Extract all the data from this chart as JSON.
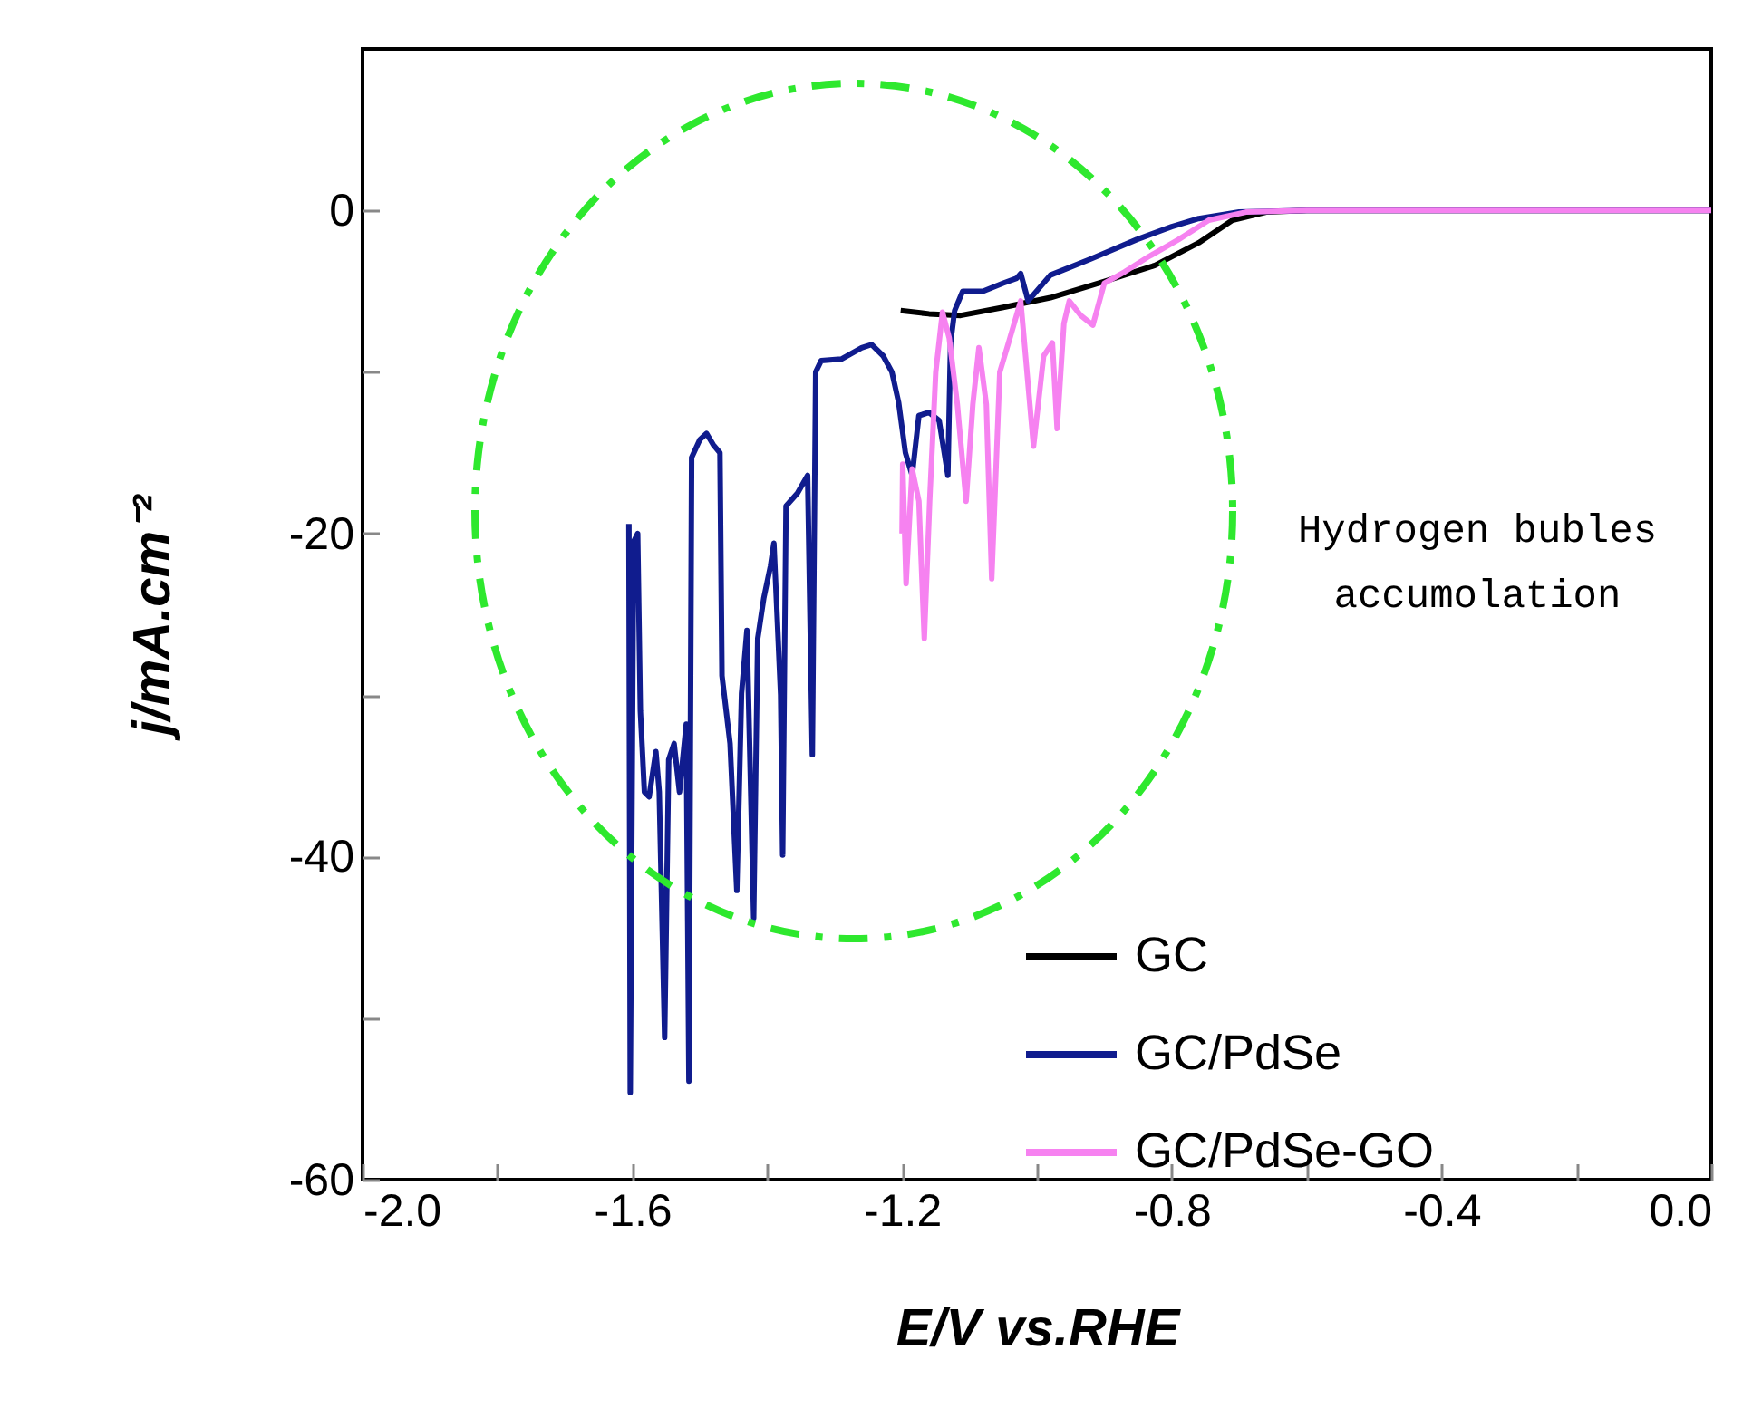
{
  "chart_data": {
    "type": "line",
    "xlabel": "E/V vs.RHE",
    "ylabel": "j/mA.cm⁻²",
    "xlim": [
      -2.0,
      0.0
    ],
    "xticks": [
      {
        "value": -2.0,
        "label": "-2.0"
      },
      {
        "value": -1.8,
        "label": null
      },
      {
        "value": -1.6,
        "label": "-1.6"
      },
      {
        "value": -1.4,
        "label": null
      },
      {
        "value": -1.2,
        "label": "-1.2"
      },
      {
        "value": -1.0,
        "label": null
      },
      {
        "value": -0.8,
        "label": "-0.8"
      },
      {
        "value": -0.6,
        "label": null
      },
      {
        "value": -0.4,
        "label": "-0.4"
      },
      {
        "value": -0.2,
        "label": null
      },
      {
        "value": 0.0,
        "label": "0.0"
      }
    ],
    "ylim": [
      -60,
      10
    ],
    "yticks": [
      -60,
      {
        "value": -50,
        "label": null
      },
      -40,
      {
        "value": -30,
        "label": null
      },
      -20,
      {
        "value": -10,
        "label": null
      },
      0
    ],
    "grid": false,
    "legend": "bottom right",
    "annotations": [
      "Hydrogen bubles",
      "accumolation"
    ],
    "series": [
      {
        "name": "GC",
        "color": "#000000",
        "x": [
          -1.202,
          -1.16,
          -1.113,
          -1.05,
          -0.98,
          -0.9,
          -0.825,
          -0.76,
          -0.71,
          -0.66,
          -0.6,
          0
        ],
        "values": [
          -6.2,
          -6.4,
          -6.5,
          -6.0,
          -5.4,
          -4.4,
          -3.4,
          -2.0,
          -0.6,
          -0.1,
          0,
          0
        ]
      },
      {
        "name": "GC/PdSe",
        "color": "#101c8e",
        "x": [
          -1.605,
          -1.603,
          -1.598,
          -1.592,
          -1.588,
          -1.582,
          -1.575,
          -1.565,
          -1.56,
          -1.552,
          -1.546,
          -1.538,
          -1.53,
          -1.52,
          -1.516,
          -1.512,
          -1.5,
          -1.49,
          -1.48,
          -1.47,
          -1.467,
          -1.455,
          -1.445,
          -1.438,
          -1.43,
          -1.42,
          -1.414,
          -1.405,
          -1.395,
          -1.39,
          -1.38,
          -1.377,
          -1.372,
          -1.355,
          -1.34,
          -1.333,
          -1.328,
          -1.32,
          -1.29,
          -1.26,
          -1.245,
          -1.228,
          -1.215,
          -1.205,
          -1.195,
          -1.185,
          -1.175,
          -1.16,
          -1.145,
          -1.132,
          -1.128,
          -1.122,
          -1.11,
          -1.08,
          -1.05,
          -1.03,
          -1.024,
          -1.013,
          -0.98,
          -0.92,
          -0.852,
          -0.8,
          -0.76,
          -0.7,
          -0.6,
          0
        ],
        "values": [
          -19.4,
          -54.6,
          -20.5,
          -20.0,
          -31.0,
          -36.0,
          -36.3,
          -33.5,
          -36.0,
          -51.2,
          -34.0,
          -33.0,
          -36.0,
          -31.8,
          -53.9,
          -15.3,
          -14.2,
          -13.8,
          -14.5,
          -15.0,
          -28.8,
          -33.0,
          -42.1,
          -29.9,
          -26.0,
          -43.8,
          -26.5,
          -24.0,
          -22.0,
          -20.6,
          -30.0,
          -39.9,
          -18.3,
          -17.5,
          -16.4,
          -33.7,
          -10.0,
          -9.3,
          -9.2,
          -8.5,
          -8.3,
          -9.0,
          -10.0,
          -11.9,
          -15.0,
          -16.4,
          -12.7,
          -12.5,
          -13.0,
          -16.4,
          -8.2,
          -6.2,
          -5.0,
          -5.0,
          -4.5,
          -4.2,
          -3.9,
          -5.6,
          -4.0,
          -3.0,
          -1.8,
          -1.0,
          -0.5,
          -0.1,
          0,
          0
        ]
      },
      {
        "name": "GC/PdSe-GO",
        "color": "#f682f0",
        "x": [
          -1.2,
          -1.199,
          -1.194,
          -1.185,
          -1.175,
          -1.167,
          -1.159,
          -1.15,
          -1.14,
          -1.13,
          -1.118,
          -1.105,
          -1.095,
          -1.086,
          -1.075,
          -1.067,
          -1.055,
          -1.04,
          -1.024,
          -1.005,
          -0.99,
          -0.977,
          -0.97,
          -0.96,
          -0.952,
          -0.935,
          -0.917,
          -0.9,
          -0.87,
          -0.836,
          -0.79,
          -0.745,
          -0.69,
          -0.6,
          0
        ],
        "values": [
          -20.0,
          -15.7,
          -23.1,
          -16.0,
          -18.0,
          -26.5,
          -18.0,
          -10.0,
          -6.3,
          -7.9,
          -12.0,
          -18.0,
          -12.0,
          -8.5,
          -12.0,
          -22.8,
          -10.0,
          -7.9,
          -5.6,
          -14.6,
          -9.0,
          -8.2,
          -13.5,
          -7.0,
          -5.6,
          -6.5,
          -7.1,
          -4.5,
          -3.8,
          -2.9,
          -1.8,
          -0.6,
          -0.1,
          0,
          0
        ]
      }
    ]
  }
}
